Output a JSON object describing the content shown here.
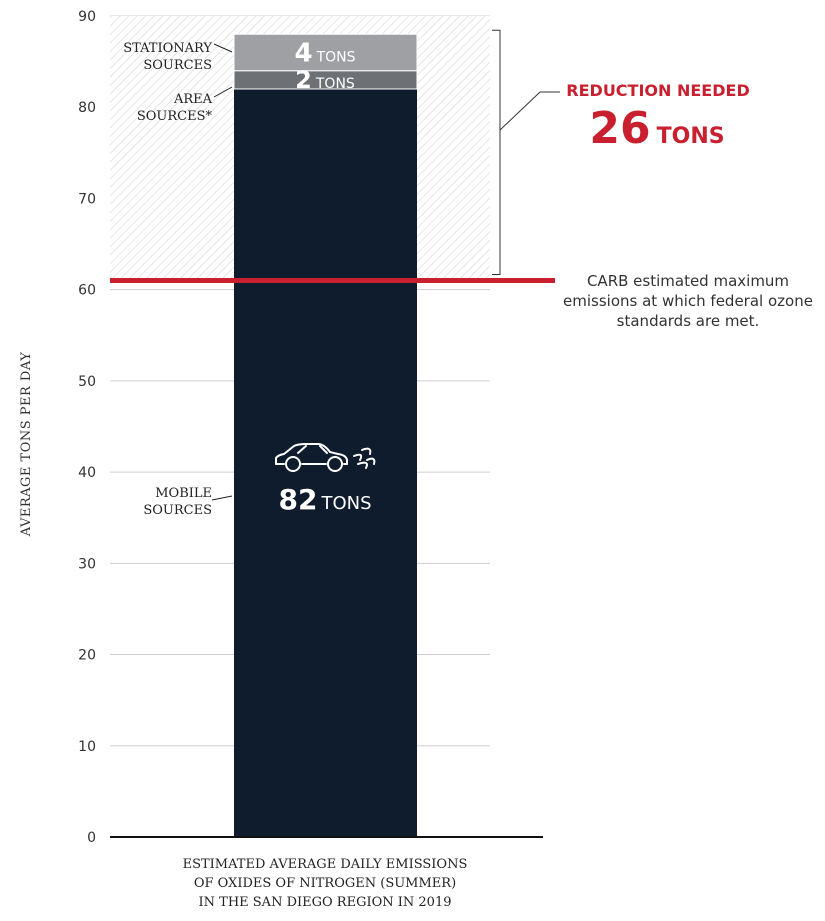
{
  "chart_data": {
    "type": "bar",
    "ylabel": "AVERAGE TONS PER DAY",
    "xlabel_lines": [
      "ESTIMATED AVERAGE DAILY EMISSIONS",
      "OF OXIDES OF NITROGEN (SUMMER)",
      "IN THE SAN DIEGO REGION IN 2019"
    ],
    "ylim": [
      0,
      90
    ],
    "yticks": [
      0,
      10,
      20,
      30,
      40,
      50,
      60,
      70,
      80,
      90
    ],
    "grid": true,
    "stack": [
      {
        "name": "MOBILE SOURCES",
        "label_lines": [
          "MOBILE",
          "SOURCES"
        ],
        "value": 82,
        "value_label": "82",
        "unit": "TONS",
        "color": "#0f1c2e"
      },
      {
        "name": "AREA SOURCES*",
        "label_lines": [
          "AREA",
          "SOURCES*"
        ],
        "value": 2,
        "value_label": "2",
        "unit": "TONS",
        "color": "#6d7075"
      },
      {
        "name": "STATIONARY SOURCES",
        "label_lines": [
          "STATIONARY",
          "SOURCES"
        ],
        "value": 4,
        "value_label": "4",
        "unit": "TONS",
        "color": "#9ea0a3"
      }
    ],
    "threshold": {
      "value": 61,
      "color": "#c8202f",
      "note_lines": [
        "CARB estimated maximum",
        "emissions at which federal ozone",
        "standards are met."
      ]
    },
    "reduction": {
      "title": "REDUCTION NEEDED",
      "value": "26",
      "unit": "TONS",
      "color": "#c8202f"
    },
    "icon": "car-emissions-icon"
  }
}
